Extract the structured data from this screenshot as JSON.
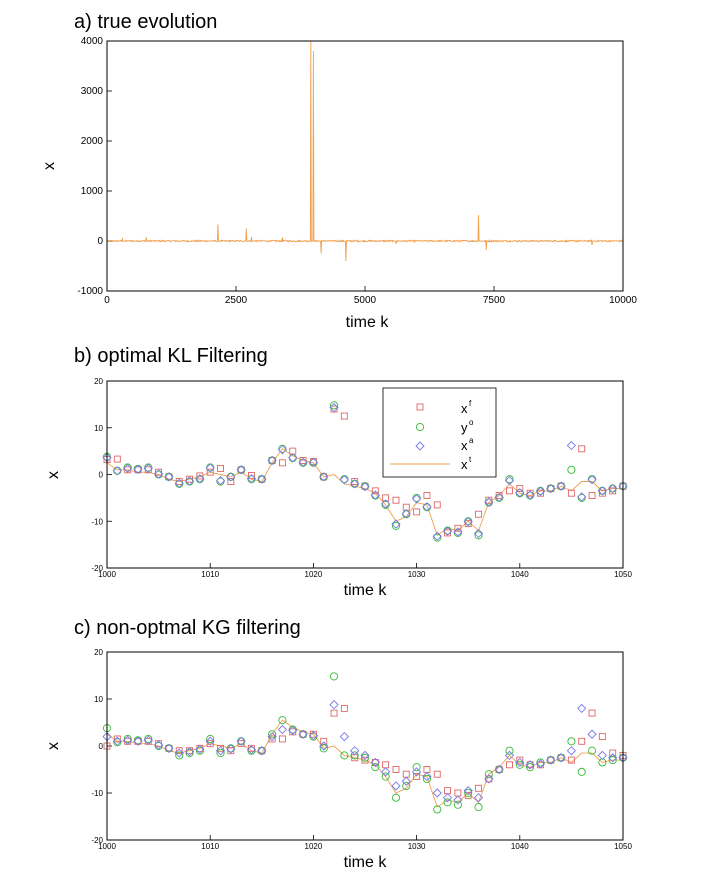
{
  "chart_data": [
    {
      "id": "a",
      "type": "line",
      "title": "a) true evolution",
      "xlabel": "time k",
      "ylabel": "x",
      "xlim": [
        0,
        10000
      ],
      "ylim": [
        -1000,
        4000
      ],
      "xticks": [
        0,
        2500,
        5000,
        7500,
        10000
      ],
      "yticks": [
        -1000,
        0,
        1000,
        2000,
        3000,
        4000
      ],
      "grid": false,
      "series": [
        {
          "color": "#f0a050",
          "noise_amplitude": 15,
          "spikes": [
            [
              300,
              60
            ],
            [
              760,
              80
            ],
            [
              2150,
              330
            ],
            [
              2700,
              250
            ],
            [
              2800,
              80
            ],
            [
              3400,
              70
            ],
            [
              3950,
              4000
            ],
            [
              4000,
              3800
            ],
            [
              4150,
              -250
            ],
            [
              4630,
              -400
            ],
            [
              5600,
              -60
            ],
            [
              7200,
              520
            ],
            [
              7350,
              -180
            ],
            [
              9400,
              -80
            ]
          ]
        }
      ]
    },
    {
      "id": "b",
      "type": "scatter",
      "title": "b) optimal KL Filtering",
      "xlabel": "time k",
      "ylabel": "x",
      "xlim": [
        1000,
        1050
      ],
      "ylim": [
        -20,
        20
      ],
      "xticks": [
        1000,
        1010,
        1020,
        1030,
        1040,
        1050
      ],
      "yticks": [
        -20,
        -10,
        0,
        10,
        20
      ],
      "legend_position": "top-center",
      "legend": [
        {
          "label": "x",
          "sup": "f",
          "marker": "square",
          "color": "#e06666"
        },
        {
          "label": "y",
          "sup": "o",
          "marker": "circle",
          "color": "#33bb33"
        },
        {
          "label": "x",
          "sup": "a",
          "marker": "diamond",
          "color": "#7777ee"
        },
        {
          "label": "x",
          "sup": "t",
          "marker": "line",
          "color": "#f0a050"
        }
      ],
      "x": [
        1000,
        1001,
        1002,
        1003,
        1004,
        1005,
        1006,
        1007,
        1008,
        1009,
        1010,
        1011,
        1012,
        1013,
        1014,
        1015,
        1016,
        1017,
        1018,
        1019,
        1020,
        1021,
        1022,
        1023,
        1024,
        1025,
        1026,
        1027,
        1028,
        1029,
        1030,
        1031,
        1032,
        1033,
        1034,
        1035,
        1036,
        1037,
        1038,
        1039,
        1040,
        1041,
        1042,
        1043,
        1044,
        1045,
        1046,
        1047,
        1048,
        1049,
        1050
      ],
      "series": [
        {
          "name": "xf",
          "marker": "square",
          "color": "#e06666",
          "values": [
            3.2,
            3.3,
            1.0,
            1.0,
            1.0,
            0.5,
            -0.5,
            -1.5,
            -1.0,
            -0.3,
            0.5,
            1.3,
            -1.5,
            1.0,
            -0.2,
            -1.0,
            3.0,
            2.5,
            5.0,
            3.0,
            2.8,
            -0.5,
            14.0,
            12.5,
            -1.5,
            -2.5,
            -3.5,
            -5.0,
            -5.5,
            -7.0,
            -8.0,
            -4.5,
            -6.5,
            -12.5,
            -11.5,
            -10.5,
            -8.5,
            -5.5,
            -4.5,
            -3.5,
            -3.0,
            -4.0,
            -4.0,
            -3.0,
            -2.5,
            -4.0,
            5.5,
            -4.5,
            -4.0,
            -3.5,
            -2.5
          ]
        },
        {
          "name": "yo",
          "marker": "circle",
          "color": "#33bb33",
          "values": [
            3.8,
            0.8,
            1.5,
            1.2,
            1.5,
            0.0,
            -0.5,
            -2.0,
            -1.5,
            -1.0,
            1.5,
            -1.5,
            -0.5,
            1.0,
            -1.0,
            -1.0,
            3.0,
            5.5,
            3.5,
            2.5,
            2.5,
            -0.5,
            14.8,
            -1.0,
            -2.0,
            -2.5,
            -4.5,
            -6.5,
            -11.0,
            -8.5,
            -5.0,
            -7.0,
            -13.5,
            -12.0,
            -12.5,
            -10.0,
            -13.0,
            -6.0,
            -5.0,
            -1.0,
            -4.0,
            -4.5,
            -3.5,
            -3.0,
            -2.5,
            1.0,
            -5.0,
            -1.0,
            -3.5,
            -3.0,
            -2.5
          ]
        },
        {
          "name": "xa",
          "marker": "diamond",
          "color": "#7777ee",
          "values": [
            3.6,
            0.8,
            1.3,
            1.1,
            1.3,
            0.1,
            -0.5,
            -1.9,
            -1.4,
            -0.9,
            1.4,
            -1.3,
            -0.5,
            1.0,
            -0.9,
            -1.0,
            3.0,
            5.3,
            3.6,
            2.6,
            2.6,
            -0.5,
            14.3,
            -1.1,
            -2.0,
            -2.6,
            -4.4,
            -6.3,
            -10.6,
            -8.4,
            -5.2,
            -6.9,
            -13.2,
            -12.1,
            -12.3,
            -10.1,
            -12.6,
            -5.9,
            -4.9,
            -1.3,
            -3.9,
            -4.4,
            -3.6,
            -3.0,
            -2.5,
            6.2,
            -4.8,
            -1.1,
            -3.5,
            -3.0,
            -2.5
          ]
        },
        {
          "name": "xt",
          "marker": "line",
          "color": "#f0a050",
          "values": [
            2.5,
            1.0,
            1.0,
            0.5,
            0.5,
            0.0,
            -1.0,
            -1.5,
            -1.0,
            -0.5,
            0.5,
            0.0,
            -0.5,
            0.5,
            -1.0,
            -1.5,
            2.5,
            5.5,
            4.0,
            3.0,
            2.5,
            -0.5,
            0.0,
            -2.0,
            -2.5,
            -3.0,
            -4.0,
            -6.5,
            -10.0,
            -9.0,
            -6.0,
            -6.5,
            -13.0,
            -11.5,
            -12.0,
            -10.0,
            -12.0,
            -6.0,
            -4.5,
            -2.0,
            -4.0,
            -4.5,
            -3.5,
            -3.5,
            -2.5,
            -3.5,
            -1.5,
            -1.5,
            -3.5,
            -3.0,
            -3.0
          ]
        }
      ]
    },
    {
      "id": "c",
      "type": "scatter",
      "title": "c) non-optmal KG filtering",
      "xlabel": "time k",
      "ylabel": "x",
      "xlim": [
        1000,
        1050
      ],
      "ylim": [
        -20,
        20
      ],
      "xticks": [
        1000,
        1010,
        1020,
        1030,
        1040,
        1050
      ],
      "yticks": [
        -20,
        -10,
        0,
        10,
        20
      ],
      "x": [
        1000,
        1001,
        1002,
        1003,
        1004,
        1005,
        1006,
        1007,
        1008,
        1009,
        1010,
        1011,
        1012,
        1013,
        1014,
        1015,
        1016,
        1017,
        1018,
        1019,
        1020,
        1021,
        1022,
        1023,
        1024,
        1025,
        1026,
        1027,
        1028,
        1029,
        1030,
        1031,
        1032,
        1033,
        1034,
        1035,
        1036,
        1037,
        1038,
        1039,
        1040,
        1041,
        1042,
        1043,
        1044,
        1045,
        1046,
        1047,
        1048,
        1049,
        1050
      ],
      "series": [
        {
          "name": "xf",
          "marker": "square",
          "color": "#e06666",
          "values": [
            0.0,
            1.5,
            1.0,
            1.0,
            1.0,
            0.5,
            -0.5,
            -1.0,
            -1.0,
            -0.5,
            0.5,
            -0.5,
            -1.0,
            0.5,
            -0.5,
            -1.0,
            1.5,
            1.5,
            3.0,
            2.5,
            2.5,
            1.0,
            7.0,
            8.0,
            -2.5,
            -3.0,
            -3.5,
            -4.0,
            -5.0,
            -6.0,
            -6.5,
            -5.0,
            -6.0,
            -9.5,
            -10.0,
            -10.5,
            -9.0,
            -7.0,
            -5.0,
            -4.0,
            -3.0,
            -4.0,
            -4.0,
            -3.0,
            -2.5,
            -3.0,
            1.0,
            7.0,
            2.0,
            -1.5,
            -2.0
          ]
        },
        {
          "name": "yo",
          "marker": "circle",
          "color": "#33bb33",
          "values": [
            3.8,
            0.8,
            1.5,
            1.2,
            1.5,
            0.0,
            -0.5,
            -2.0,
            -1.5,
            -1.0,
            1.5,
            -1.5,
            -0.5,
            1.0,
            -1.0,
            -1.0,
            2.5,
            5.5,
            3.5,
            2.5,
            2.0,
            -0.5,
            14.8,
            -2.0,
            -2.0,
            -2.5,
            -4.5,
            -6.5,
            -11.0,
            -8.5,
            -4.5,
            -7.0,
            -13.5,
            -12.0,
            -12.5,
            -10.0,
            -13.0,
            -6.0,
            -5.0,
            -1.0,
            -4.0,
            -4.5,
            -3.5,
            -3.0,
            -2.5,
            1.0,
            -5.5,
            -1.0,
            -3.5,
            -3.0,
            -2.5
          ]
        },
        {
          "name": "xa",
          "marker": "diamond",
          "color": "#7777ee",
          "values": [
            2.0,
            1.0,
            1.2,
            1.0,
            1.2,
            0.2,
            -0.5,
            -1.5,
            -1.2,
            -0.7,
            1.0,
            -1.0,
            -0.6,
            1.0,
            -0.8,
            -1.0,
            2.0,
            3.5,
            3.3,
            2.5,
            2.2,
            0.0,
            8.8,
            2.0,
            -1.0,
            -2.0,
            -3.5,
            -5.5,
            -8.5,
            -7.5,
            -5.5,
            -6.5,
            -10.0,
            -11.0,
            -11.5,
            -9.5,
            -11.0,
            -7.0,
            -5.0,
            -2.0,
            -3.5,
            -4.0,
            -3.8,
            -3.0,
            -2.5,
            -1.0,
            8.0,
            2.5,
            -2.0,
            -2.5,
            -2.5
          ]
        },
        {
          "name": "xt",
          "marker": "line",
          "color": "#f0a050",
          "values": [
            2.5,
            1.0,
            1.0,
            0.5,
            0.5,
            0.0,
            -1.0,
            -1.5,
            -1.0,
            -0.5,
            0.5,
            0.0,
            -0.5,
            0.5,
            -1.0,
            -1.5,
            2.5,
            5.5,
            4.0,
            3.0,
            2.5,
            -0.5,
            0.0,
            -2.0,
            -2.5,
            -3.0,
            -4.0,
            -6.5,
            -10.0,
            -9.0,
            -6.0,
            -6.5,
            -13.0,
            -11.5,
            -12.0,
            -10.0,
            -12.0,
            -6.0,
            -4.5,
            -2.0,
            -4.0,
            -4.5,
            -3.5,
            -3.5,
            -2.5,
            -3.5,
            -1.5,
            -1.5,
            -3.5,
            -3.0,
            -3.0
          ]
        }
      ]
    }
  ]
}
